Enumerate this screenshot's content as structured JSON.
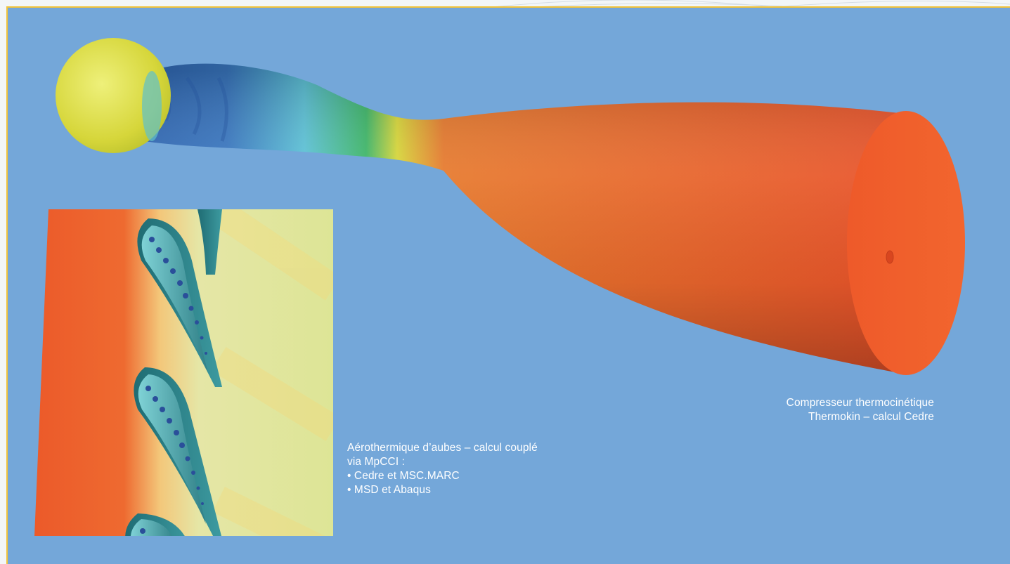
{
  "captions": {
    "compressor": {
      "line1": "Compresseur thermocinétique",
      "line2": "Thermokin – calcul Cedre"
    },
    "blades": {
      "line1": "Aérothermique d’aubes – calcul couplé",
      "line2": "via MpCCI :",
      "bullet1": "• Cedre et MSC.MARC",
      "bullet2": "• MSD et Abaqus"
    }
  },
  "colors": {
    "background": "#74a7d9",
    "frame_accent": "#f2c33a",
    "hot": "#ef5a2a",
    "cold": "#2f5fb0",
    "warm": "#e6dd55"
  }
}
